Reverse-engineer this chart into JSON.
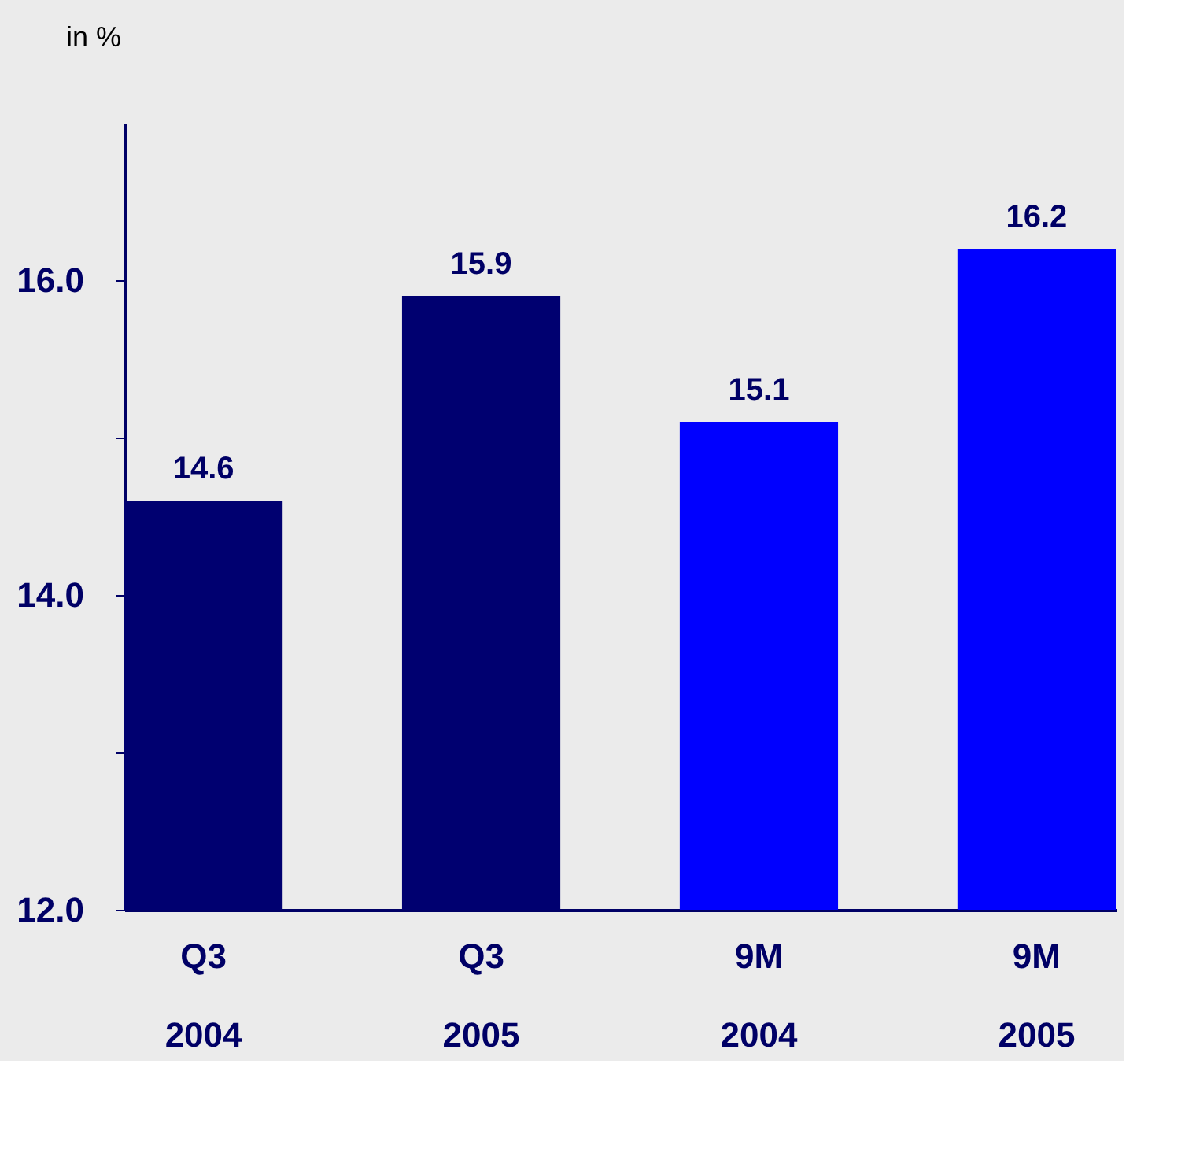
{
  "chart_data": {
    "type": "bar",
    "ylabel": "in %",
    "categories": [
      "Q3\n2004",
      "Q3\n2005",
      "9M\n2004",
      "9M\n2005"
    ],
    "values": [
      14.6,
      15.9,
      15.1,
      16.2
    ],
    "colors": [
      "#000070",
      "#000070",
      "#0000ff",
      "#0000ff"
    ],
    "ylim": [
      12,
      17
    ],
    "yticks": [
      {
        "value": 12,
        "label": "12.0"
      },
      {
        "value": 13,
        "label": null
      },
      {
        "value": 14,
        "label": "14.0"
      },
      {
        "value": 15,
        "label": null
      },
      {
        "value": 16,
        "label": "16.0"
      }
    ],
    "data_labels": true,
    "grid": false
  }
}
